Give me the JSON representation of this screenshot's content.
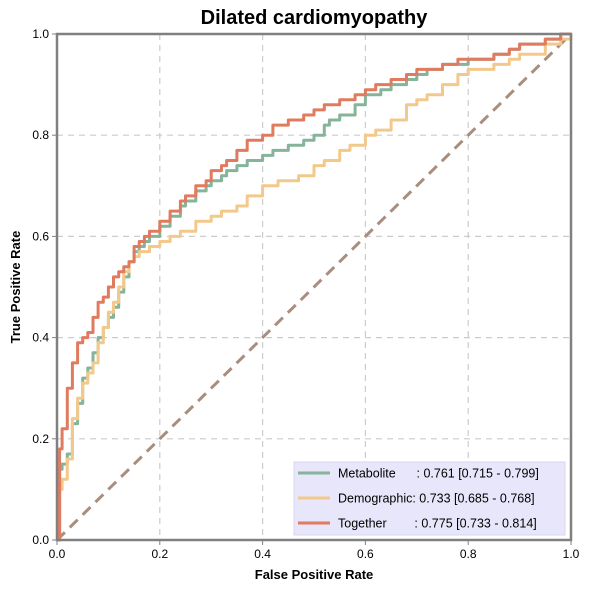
{
  "chart_data": {
    "type": "line",
    "title": "Dilated cardiomyopathy",
    "xlabel": "False Positive Rate",
    "ylabel": "True Positive Rate",
    "xlim": [
      0,
      1
    ],
    "ylim": [
      0,
      1
    ],
    "xticks": [
      0,
      0.2,
      0.4,
      0.6,
      0.8,
      1
    ],
    "yticks": [
      0,
      0.2,
      0.4,
      0.6,
      0.8,
      1
    ],
    "xtick_labels": [
      "0.0",
      "0.2",
      "0.4",
      "0.6",
      "0.8",
      "1.0"
    ],
    "ytick_labels": [
      "0.0",
      "0.2",
      "0.4",
      "0.6",
      "0.8",
      "1.0"
    ],
    "grid": true,
    "legend_position": "bottom-right",
    "diagonal": {
      "color": "#a98e7e",
      "x": [
        0,
        1
      ],
      "y": [
        0,
        1
      ]
    },
    "series": [
      {
        "name": "Metabolite",
        "label": "Metabolite      : 0.761 [0.715 - 0.799]",
        "color": "#86b49a",
        "x": [
          0,
          0.005,
          0.01,
          0.02,
          0.03,
          0.04,
          0.05,
          0.06,
          0.07,
          0.08,
          0.09,
          0.1,
          0.11,
          0.12,
          0.13,
          0.14,
          0.15,
          0.16,
          0.17,
          0.18,
          0.2,
          0.22,
          0.24,
          0.25,
          0.27,
          0.29,
          0.3,
          0.32,
          0.33,
          0.35,
          0.37,
          0.4,
          0.42,
          0.45,
          0.48,
          0.5,
          0.52,
          0.53,
          0.55,
          0.58,
          0.6,
          0.62,
          0.63,
          0.65,
          0.68,
          0.7,
          0.72,
          0.75,
          0.78,
          0.8,
          0.85,
          0.88,
          0.9,
          0.95,
          0.98,
          1
        ],
        "y": [
          0,
          0.14,
          0.15,
          0.17,
          0.23,
          0.27,
          0.32,
          0.34,
          0.37,
          0.4,
          0.42,
          0.44,
          0.46,
          0.49,
          0.52,
          0.55,
          0.57,
          0.58,
          0.59,
          0.6,
          0.62,
          0.64,
          0.66,
          0.67,
          0.69,
          0.7,
          0.71,
          0.72,
          0.73,
          0.74,
          0.75,
          0.76,
          0.77,
          0.78,
          0.79,
          0.8,
          0.82,
          0.83,
          0.84,
          0.86,
          0.88,
          0.88,
          0.89,
          0.9,
          0.91,
          0.92,
          0.93,
          0.94,
          0.94,
          0.95,
          0.96,
          0.97,
          0.98,
          0.99,
          1,
          1
        ]
      },
      {
        "name": "Demographic",
        "label": "Demographic: 0.733 [0.685 - 0.768]",
        "color": "#f3c98b",
        "x": [
          0,
          0.005,
          0.01,
          0.02,
          0.03,
          0.04,
          0.05,
          0.06,
          0.07,
          0.08,
          0.09,
          0.1,
          0.11,
          0.12,
          0.13,
          0.14,
          0.15,
          0.16,
          0.17,
          0.18,
          0.2,
          0.22,
          0.24,
          0.27,
          0.3,
          0.32,
          0.35,
          0.37,
          0.4,
          0.43,
          0.45,
          0.47,
          0.5,
          0.52,
          0.55,
          0.57,
          0.6,
          0.62,
          0.65,
          0.68,
          0.7,
          0.72,
          0.75,
          0.78,
          0.8,
          0.85,
          0.88,
          0.9,
          0.95,
          0.98,
          1
        ],
        "y": [
          0,
          0.1,
          0.12,
          0.16,
          0.24,
          0.28,
          0.31,
          0.33,
          0.35,
          0.39,
          0.42,
          0.45,
          0.47,
          0.5,
          0.53,
          0.55,
          0.56,
          0.57,
          0.57,
          0.58,
          0.59,
          0.6,
          0.61,
          0.63,
          0.64,
          0.65,
          0.66,
          0.68,
          0.7,
          0.71,
          0.71,
          0.72,
          0.74,
          0.75,
          0.77,
          0.78,
          0.8,
          0.81,
          0.83,
          0.86,
          0.87,
          0.88,
          0.9,
          0.92,
          0.93,
          0.94,
          0.95,
          0.96,
          0.98,
          0.99,
          1
        ]
      },
      {
        "name": "Together",
        "label": "Together        : 0.775 [0.733 - 0.814]",
        "color": "#e07b5f",
        "x": [
          0,
          0.005,
          0.01,
          0.02,
          0.03,
          0.04,
          0.05,
          0.06,
          0.07,
          0.08,
          0.09,
          0.1,
          0.11,
          0.12,
          0.13,
          0.14,
          0.15,
          0.16,
          0.17,
          0.18,
          0.2,
          0.22,
          0.24,
          0.25,
          0.27,
          0.29,
          0.3,
          0.32,
          0.33,
          0.35,
          0.37,
          0.4,
          0.42,
          0.45,
          0.48,
          0.5,
          0.52,
          0.55,
          0.58,
          0.6,
          0.62,
          0.65,
          0.68,
          0.7,
          0.72,
          0.75,
          0.78,
          0.8,
          0.85,
          0.88,
          0.9,
          0.95,
          0.98,
          1
        ],
        "y": [
          0,
          0.18,
          0.22,
          0.3,
          0.35,
          0.39,
          0.4,
          0.41,
          0.44,
          0.47,
          0.48,
          0.5,
          0.52,
          0.53,
          0.54,
          0.55,
          0.58,
          0.59,
          0.6,
          0.61,
          0.63,
          0.65,
          0.67,
          0.68,
          0.7,
          0.71,
          0.73,
          0.74,
          0.75,
          0.77,
          0.79,
          0.8,
          0.82,
          0.83,
          0.84,
          0.85,
          0.86,
          0.87,
          0.88,
          0.89,
          0.9,
          0.91,
          0.92,
          0.93,
          0.93,
          0.94,
          0.95,
          0.95,
          0.96,
          0.97,
          0.98,
          0.99,
          1,
          1
        ]
      }
    ]
  }
}
